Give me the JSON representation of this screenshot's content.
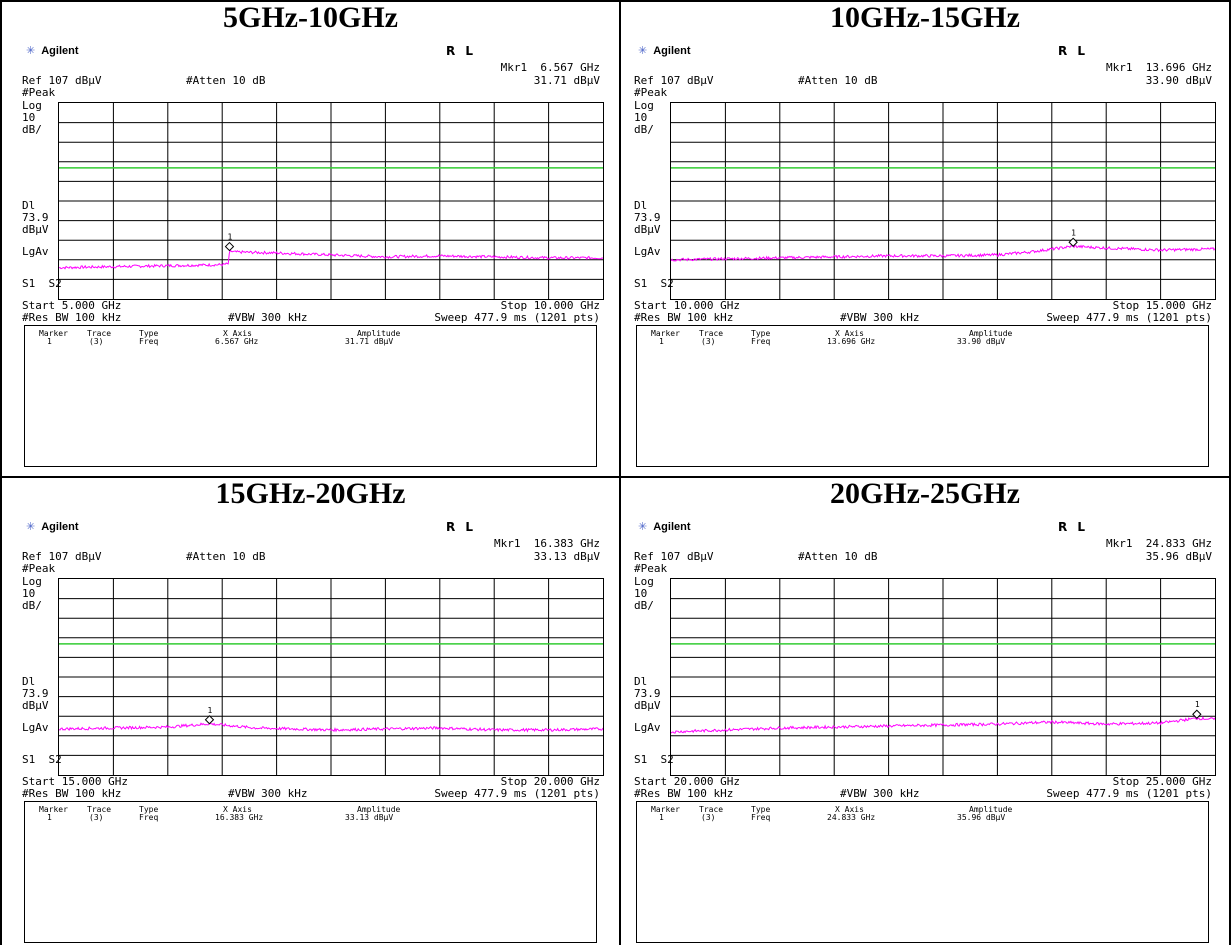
{
  "panels": [
    {
      "title": "5GHz-10GHz",
      "brand": "Agilent",
      "mode": "R L",
      "marker_readout_freq": "Mkr1  6.567 GHz",
      "marker_readout_amp": "31.71 dBμV",
      "ref": "Ref 107 dBμV",
      "atten": "#Atten 10 dB",
      "detector": "#Peak",
      "scale_log": "Log",
      "scale_div": "10",
      "scale_unit": "dB/",
      "dl_label": "Dl",
      "dl_value": "73.9",
      "dl_unit": "dBμV",
      "avg": "LgAv",
      "s1s2": "S1  S2",
      "start": "Start 5.000 GHz",
      "stop": "Stop 10.000 GHz",
      "rbw": "#Res BW 100 kHz",
      "vbw": "#VBW 300 kHz",
      "sweep": "Sweep 477.9 ms (1201 pts)",
      "table": {
        "h_marker": "Marker",
        "h_trace": "Trace",
        "h_type": "Type",
        "h_x": "X Axis",
        "h_amp": "Amplitude",
        "marker": "1",
        "trace": "(3)",
        "type": "Freq",
        "x": "6.567 GHz",
        "amp": "31.71 dBμV"
      }
    },
    {
      "title": "10GHz-15GHz",
      "brand": "Agilent",
      "mode": "R L",
      "marker_readout_freq": "Mkr1  13.696 GHz",
      "marker_readout_amp": "33.90 dBμV",
      "ref": "Ref 107 dBμV",
      "atten": "#Atten 10 dB",
      "detector": "#Peak",
      "scale_log": "Log",
      "scale_div": "10",
      "scale_unit": "dB/",
      "dl_label": "Dl",
      "dl_value": "73.9",
      "dl_unit": "dBμV",
      "avg": "LgAv",
      "s1s2": "S1  S2",
      "start": "Start 10.000 GHz",
      "stop": "Stop 15.000 GHz",
      "rbw": "#Res BW 100 kHz",
      "vbw": "#VBW 300 kHz",
      "sweep": "Sweep 477.9 ms (1201 pts)",
      "table": {
        "h_marker": "Marker",
        "h_trace": "Trace",
        "h_type": "Type",
        "h_x": "X Axis",
        "h_amp": "Amplitude",
        "marker": "1",
        "trace": "(3)",
        "type": "Freq",
        "x": "13.696 GHz",
        "amp": "33.90 dBμV"
      }
    },
    {
      "title": "15GHz-20GHz",
      "brand": "Agilent",
      "mode": "R L",
      "marker_readout_freq": "Mkr1  16.383 GHz",
      "marker_readout_amp": "33.13 dBμV",
      "ref": "Ref 107 dBμV",
      "atten": "#Atten 10 dB",
      "detector": "#Peak",
      "scale_log": "Log",
      "scale_div": "10",
      "scale_unit": "dB/",
      "dl_label": "Dl",
      "dl_value": "73.9",
      "dl_unit": "dBμV",
      "avg": "LgAv",
      "s1s2": "S1  S2",
      "start": "Start 15.000 GHz",
      "stop": "Stop 20.000 GHz",
      "rbw": "#Res BW 100 kHz",
      "vbw": "#VBW 300 kHz",
      "sweep": "Sweep 477.9 ms (1201 pts)",
      "table": {
        "h_marker": "Marker",
        "h_trace": "Trace",
        "h_type": "Type",
        "h_x": "X Axis",
        "h_amp": "Amplitude",
        "marker": "1",
        "trace": "(3)",
        "type": "Freq",
        "x": "16.383 GHz",
        "amp": "33.13 dBμV"
      }
    },
    {
      "title": "20GHz-25GHz",
      "brand": "Agilent",
      "mode": "R L",
      "marker_readout_freq": "Mkr1  24.833 GHz",
      "marker_readout_amp": "35.96 dBμV",
      "ref": "Ref 107 dBμV",
      "atten": "#Atten 10 dB",
      "detector": "#Peak",
      "scale_log": "Log",
      "scale_div": "10",
      "scale_unit": "dB/",
      "dl_label": "Dl",
      "dl_value": "73.9",
      "dl_unit": "dBμV",
      "avg": "LgAv",
      "s1s2": "S1  S2",
      "start": "Start 20.000 GHz",
      "stop": "Stop 25.000 GHz",
      "rbw": "#Res BW 100 kHz",
      "vbw": "#VBW 300 kHz",
      "sweep": "Sweep 477.9 ms (1201 pts)",
      "table": {
        "h_marker": "Marker",
        "h_trace": "Trace",
        "h_type": "Type",
        "h_x": "X Axis",
        "h_amp": "Amplitude",
        "marker": "1",
        "trace": "(3)",
        "type": "Freq",
        "x": "24.833 GHz",
        "amp": "35.96 dBμV"
      }
    }
  ],
  "colors": {
    "trace": "#ff00ff",
    "display_line": "#33cc33",
    "grid": "#000000",
    "logo": "#4a63c8"
  },
  "chart_data": [
    {
      "type": "line",
      "title": "5GHz-10GHz",
      "x_range_ghz": [
        5.0,
        10.0
      ],
      "y_ref_dbuv": 107,
      "y_scale_db_per_div": 10,
      "display_line_dbuv": 73.9,
      "ylim": [
        7,
        107
      ],
      "series": [
        {
          "x": [
            5.0,
            5.5,
            6.0,
            6.5,
            6.56,
            6.567,
            6.6,
            7.0,
            7.5,
            8.0,
            8.5,
            9.0,
            9.5,
            10.0
          ],
          "y": [
            23,
            23.5,
            24,
            24.5,
            25,
            31.71,
            31,
            30.5,
            29.5,
            28.5,
            29,
            28.5,
            28,
            28
          ]
        }
      ],
      "marker": {
        "label": "1",
        "x": 6.567,
        "y": 31.71
      }
    },
    {
      "type": "line",
      "title": "10GHz-15GHz",
      "x_range_ghz": [
        10.0,
        15.0
      ],
      "y_ref_dbuv": 107,
      "y_scale_db_per_div": 10,
      "display_line_dbuv": 73.9,
      "ylim": [
        7,
        107
      ],
      "series": [
        {
          "x": [
            10.0,
            10.5,
            11.0,
            11.5,
            12.0,
            12.5,
            13.0,
            13.3,
            13.696,
            14.0,
            14.5,
            15.0
          ],
          "y": [
            27,
            27.5,
            28,
            28.5,
            29,
            29,
            29.5,
            31,
            33.9,
            33,
            32,
            32.5
          ]
        }
      ],
      "marker": {
        "label": "1",
        "x": 13.696,
        "y": 33.9
      }
    },
    {
      "type": "line",
      "title": "15GHz-20GHz",
      "x_range_ghz": [
        15.0,
        20.0
      ],
      "y_ref_dbuv": 107,
      "y_scale_db_per_div": 10,
      "display_line_dbuv": 73.9,
      "ylim": [
        7,
        107
      ],
      "series": [
        {
          "x": [
            15.0,
            15.5,
            16.0,
            16.383,
            16.8,
            17.5,
            18.0,
            18.5,
            19.0,
            19.5,
            20.0
          ],
          "y": [
            30.5,
            31,
            31.5,
            33.13,
            31,
            30,
            30.5,
            31,
            30,
            30,
            30.5
          ]
        }
      ],
      "marker": {
        "label": "1",
        "x": 16.383,
        "y": 33.13
      }
    },
    {
      "type": "line",
      "title": "20GHz-25GHz",
      "x_range_ghz": [
        20.0,
        25.0
      ],
      "y_ref_dbuv": 107,
      "y_scale_db_per_div": 10,
      "display_line_dbuv": 73.9,
      "ylim": [
        7,
        107
      ],
      "series": [
        {
          "x": [
            20.0,
            20.5,
            21.0,
            21.5,
            22.0,
            22.5,
            23.0,
            23.5,
            24.0,
            24.5,
            24.833,
            25.0
          ],
          "y": [
            29,
            30,
            31,
            31.5,
            32,
            32.5,
            33,
            34,
            33,
            33.5,
            35.96,
            35.5
          ]
        }
      ],
      "marker": {
        "label": "1",
        "x": 24.833,
        "y": 35.96
      }
    }
  ]
}
